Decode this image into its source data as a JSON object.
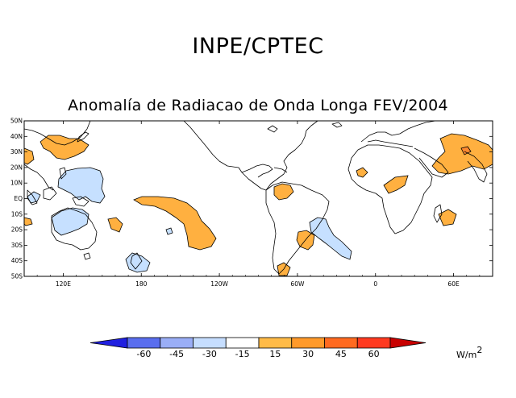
{
  "header": {
    "org": "INPE/CPTEC",
    "title": "Anomalía de Radiacao de Onda Longa FEV/2004"
  },
  "map": {
    "lat_labels": [
      "50N",
      "40N",
      "30N",
      "20N",
      "10N",
      "EQ",
      "10S",
      "20S",
      "30S",
      "40S",
      "50S"
    ],
    "lon_labels": [
      "120E",
      "180",
      "120W",
      "60W",
      "0",
      "60E"
    ],
    "extent": {
      "lon_min": 90,
      "lon_max": 450,
      "lat_min": -50,
      "lat_max": 50
    }
  },
  "colorbar": {
    "tick_labels": [
      "-60",
      "-45",
      "-30",
      "-15",
      "15",
      "30",
      "45",
      "60"
    ],
    "colors": [
      "#2020e0",
      "#5a6eee",
      "#9aaef6",
      "#c6deff",
      "#ffffff",
      "#ffbb48",
      "#ff9a2a",
      "#ff6a20",
      "#ff3a20",
      "#c80000"
    ],
    "units_base": "W/m",
    "units_exp": "2"
  },
  "legend_colors": {
    "positive": "#ffb040",
    "positive_strong": "#ff8a30",
    "negative": "#c6e0ff"
  }
}
